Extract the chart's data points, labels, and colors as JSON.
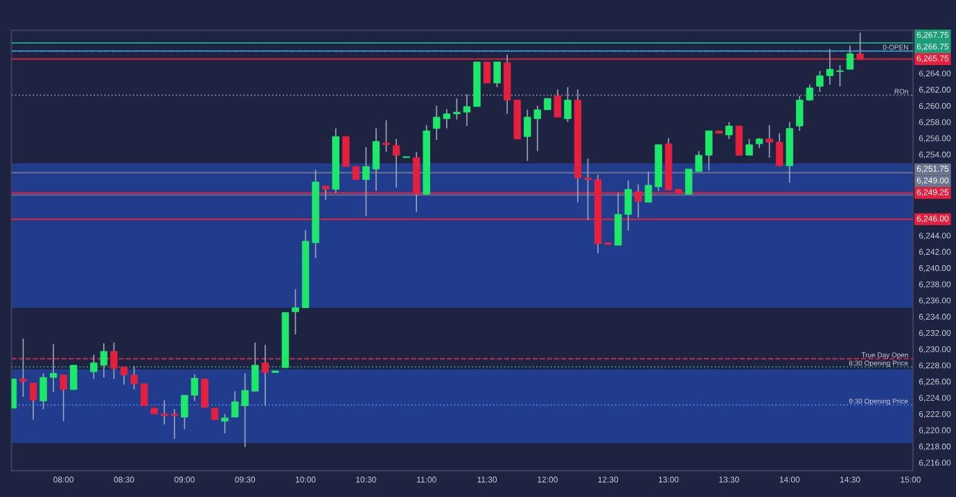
{
  "chart_data": {
    "type": "candlestick",
    "x": [
      7.5833,
      7.6667,
      7.75,
      7.8333,
      7.9167,
      8.0,
      8.0833,
      8.25,
      8.3333,
      8.4167,
      8.5,
      8.5833,
      8.6667,
      8.75,
      8.8333,
      8.9167,
      9.0,
      9.0833,
      9.1667,
      9.25,
      9.3333,
      9.4167,
      9.5,
      9.5833,
      9.6667,
      9.75,
      9.8333,
      9.9167,
      10.0,
      10.0833,
      10.1667,
      10.25,
      10.3333,
      10.4167,
      10.5,
      10.5833,
      10.6667,
      10.75,
      10.8333,
      10.9167,
      11.0,
      11.0833,
      11.1667,
      11.25,
      11.3333,
      11.4167,
      11.5,
      11.5833,
      11.6667,
      11.75,
      11.8333,
      11.9167,
      12.0,
      12.0833,
      12.1667,
      12.25,
      12.3333,
      12.4167,
      12.5,
      12.5833,
      12.6667,
      12.75,
      12.8333,
      12.9167,
      13.0,
      13.0833,
      13.1667,
      13.25,
      13.3333,
      13.4167,
      13.5,
      13.5833,
      13.6667,
      13.75,
      13.8333,
      13.9167,
      14.0,
      14.0833,
      14.1667,
      14.25,
      14.3333,
      14.4167,
      14.5,
      14.5833
    ],
    "ohlc": [
      [
        6222.7,
        6226.3,
        6222.7,
        6226.3
      ],
      [
        6226.3,
        6231.3,
        6224.1,
        6226.0
      ],
      [
        6225.8,
        6225.8,
        6221.3,
        6223.7
      ],
      [
        6223.6,
        6227.0,
        6222.6,
        6226.5
      ],
      [
        6226.5,
        6230.6,
        6224.7,
        6227.0
      ],
      [
        6226.8,
        6226.8,
        6221.1,
        6225.0
      ],
      [
        6225.0,
        6228.0,
        6225.0,
        6228.0
      ],
      [
        6227.2,
        6229.3,
        6226.3,
        6228.3
      ],
      [
        6228.0,
        6230.7,
        6226.5,
        6229.7
      ],
      [
        6229.7,
        6230.8,
        6226.3,
        6227.6
      ],
      [
        6227.8,
        6227.8,
        6225.6,
        6226.8
      ],
      [
        6226.8,
        6227.9,
        6225.0,
        6225.7
      ],
      [
        6225.7,
        6225.7,
        6223.0,
        6223.0
      ],
      [
        6222.7,
        6222.7,
        6222.0,
        6222.0
      ],
      [
        6222.0,
        6223.7,
        6220.7,
        6221.8
      ],
      [
        6222.0,
        6222.6,
        6218.9,
        6221.8
      ],
      [
        6221.6,
        6224.3,
        6220.1,
        6224.3
      ],
      [
        6224.3,
        6226.9,
        6223.6,
        6226.4
      ],
      [
        6226.3,
        6226.3,
        6222.8,
        6222.8
      ],
      [
        6222.7,
        6222.7,
        6221.3,
        6221.3
      ],
      [
        6221.1,
        6222.0,
        6219.6,
        6221.5
      ],
      [
        6221.6,
        6224.8,
        6221.6,
        6223.5
      ],
      [
        6223.0,
        6227.0,
        6217.9,
        6224.9
      ],
      [
        6224.8,
        6230.8,
        6224.8,
        6228.0
      ],
      [
        6228.3,
        6230.5,
        6223.0,
        6227.1
      ],
      [
        6227.1,
        6227.3,
        6227.1,
        6227.3
      ],
      [
        6227.7,
        6234.5,
        6227.7,
        6234.5
      ],
      [
        6234.6,
        6237.4,
        6231.8,
        6235.1
      ],
      [
        6235.1,
        6244.7,
        6235.1,
        6243.3
      ],
      [
        6243.1,
        6252.1,
        6241.2,
        6250.6
      ],
      [
        6250.1,
        6250.1,
        6248.4,
        6249.7
      ],
      [
        6249.7,
        6257.2,
        6249.2,
        6256.2
      ],
      [
        6256.2,
        6256.2,
        6252.5,
        6252.5
      ],
      [
        6252.5,
        6252.5,
        6250.9,
        6250.9
      ],
      [
        6250.9,
        6254.9,
        6246.4,
        6252.5
      ],
      [
        6252.2,
        6257.2,
        6249.5,
        6255.6
      ],
      [
        6255.4,
        6258.2,
        6254.3,
        6255.2
      ],
      [
        6255.1,
        6255.9,
        6249.9,
        6253.9
      ],
      [
        6253.6,
        6253.6,
        6253.6,
        6253.6
      ],
      [
        6253.6,
        6254.3,
        6246.9,
        6249.1
      ],
      [
        6249.1,
        6257.6,
        6249.1,
        6256.9
      ],
      [
        6257.2,
        6260.0,
        6255.8,
        6258.6
      ],
      [
        6258.4,
        6259.6,
        6257.2,
        6259.0
      ],
      [
        6259.0,
        6260.9,
        6258.3,
        6259.2
      ],
      [
        6259.2,
        6261.4,
        6257.5,
        6259.9
      ],
      [
        6259.9,
        6265.4,
        6259.9,
        6265.4
      ],
      [
        6265.4,
        6265.4,
        6262.8,
        6262.8
      ],
      [
        6262.8,
        6265.4,
        6262.3,
        6265.4
      ],
      [
        6265.3,
        6266.3,
        6259.0,
        6260.7
      ],
      [
        6260.7,
        6260.7,
        6255.9,
        6255.9
      ],
      [
        6256.2,
        6259.5,
        6253.2,
        6258.6
      ],
      [
        6258.4,
        6260.0,
        6254.4,
        6259.5
      ],
      [
        6259.5,
        6260.9,
        6259.5,
        6260.9
      ],
      [
        6261.2,
        6262.0,
        6258.6,
        6258.6
      ],
      [
        6258.4,
        6262.3,
        6258.0,
        6260.7
      ],
      [
        6260.7,
        6262.0,
        6248.1,
        6251.1
      ],
      [
        6251.1,
        6253.5,
        6245.9,
        6250.9
      ],
      [
        6250.9,
        6251.5,
        6241.8,
        6243.0
      ],
      [
        6243.1,
        6243.1,
        6242.9,
        6242.9
      ],
      [
        6242.8,
        6249.3,
        6242.8,
        6246.6
      ],
      [
        6246.6,
        6250.8,
        6244.6,
        6249.7
      ],
      [
        6249.4,
        6250.3,
        6246.2,
        6248.2
      ],
      [
        6248.1,
        6251.9,
        6248.1,
        6250.2
      ],
      [
        6250.0,
        6255.2,
        6249.5,
        6255.2
      ],
      [
        6255.3,
        6256.0,
        6249.6,
        6249.6
      ],
      [
        6249.7,
        6249.7,
        6249.2,
        6249.2
      ],
      [
        6249.1,
        6252.2,
        6249.1,
        6252.2
      ],
      [
        6251.9,
        6254.4,
        6251.9,
        6253.9
      ],
      [
        6253.9,
        6256.9,
        6252.0,
        6256.9
      ],
      [
        6256.9,
        6256.9,
        6256.6,
        6256.6
      ],
      [
        6256.4,
        6258.0,
        6255.9,
        6257.5
      ],
      [
        6257.5,
        6257.5,
        6253.9,
        6253.9
      ],
      [
        6253.9,
        6255.9,
        6253.9,
        6255.2
      ],
      [
        6255.3,
        6256.0,
        6254.8,
        6255.9
      ],
      [
        6255.9,
        6257.6,
        6253.6,
        6255.5
      ],
      [
        6255.5,
        6256.6,
        6252.5,
        6252.6
      ],
      [
        6252.6,
        6258.0,
        6250.5,
        6257.2
      ],
      [
        6257.5,
        6261.2,
        6256.9,
        6260.7
      ],
      [
        6260.7,
        6262.6,
        6260.6,
        6262.2
      ],
      [
        6262.4,
        6264.3,
        6261.7,
        6263.7
      ],
      [
        6263.7,
        6267.0,
        6262.6,
        6264.5
      ],
      [
        6264.2,
        6265.0,
        6262.4,
        6264.2
      ],
      [
        6264.5,
        6267.4,
        6264.5,
        6266.4
      ],
      [
        6266.4,
        6269.0,
        6265.7,
        6265.7
      ]
    ],
    "colors": [
      "#1ee86a",
      "#e3213f",
      "#e3213f",
      "#1ee86a",
      "#1ee86a",
      "#e3213f",
      "#1ee86a",
      "#1ee86a",
      "#1ee86a",
      "#e3213f",
      "#e3213f",
      "#e3213f",
      "#e3213f",
      "#e3213f",
      "#e3213f",
      "#e3213f",
      "#1ee86a",
      "#1ee86a",
      "#e3213f",
      "#e3213f",
      "#1ee86a",
      "#1ee86a",
      "#1ee86a",
      "#1ee86a",
      "#e3213f",
      "#1ee86a",
      "#1ee86a",
      "#1ee86a",
      "#1ee86a",
      "#1ee86a",
      "#e3213f",
      "#1ee86a",
      "#e3213f",
      "#e3213f",
      "#1ee86a",
      "#1ee86a",
      "#e3213f",
      "#e3213f",
      "#1ee86a",
      "#e3213f",
      "#1ee86a",
      "#1ee86a",
      "#1ee86a",
      "#1ee86a",
      "#1ee86a",
      "#1ee86a",
      "#e3213f",
      "#1ee86a",
      "#e3213f",
      "#e3213f",
      "#1ee86a",
      "#1ee86a",
      "#1ee86a",
      "#e3213f",
      "#1ee86a",
      "#e3213f",
      "#e3213f",
      "#e3213f",
      "#e3213f",
      "#1ee86a",
      "#1ee86a",
      "#e3213f",
      "#1ee86a",
      "#1ee86a",
      "#e3213f",
      "#e3213f",
      "#1ee86a",
      "#1ee86a",
      "#1ee86a",
      "#e3213f",
      "#1ee86a",
      "#e3213f",
      "#1ee86a",
      "#1ee86a",
      "#e3213f",
      "#e3213f",
      "#1ee86a",
      "#1ee86a",
      "#1ee86a",
      "#1ee86a",
      "#1ee86a",
      "#1ee86a",
      "#1ee86a",
      "#e3213f"
    ],
    "xlim": [
      7.57,
      15.02
    ],
    "xticks": [
      {
        "value": 8,
        "label": "08:00"
      },
      {
        "value": 8.5,
        "label": "08:30"
      },
      {
        "value": 9,
        "label": "09:00"
      },
      {
        "value": 9.5,
        "label": "09:30"
      },
      {
        "value": 10,
        "label": "10:00"
      },
      {
        "value": 10.5,
        "label": "10:30"
      },
      {
        "value": 11,
        "label": "11:00"
      },
      {
        "value": 11.5,
        "label": "11:30"
      },
      {
        "value": 12,
        "label": "12:00"
      },
      {
        "value": 12.5,
        "label": "12:30"
      },
      {
        "value": 13,
        "label": "13:00"
      },
      {
        "value": 13.5,
        "label": "13:30"
      },
      {
        "value": 14,
        "label": "14:00"
      },
      {
        "value": 14.5,
        "label": "14:30"
      },
      {
        "value": 15,
        "label": "15:00"
      }
    ],
    "ylim": [
      6215.0,
      6269.3
    ],
    "yticks": [
      {
        "value": 6216,
        "label": "6,216.00"
      },
      {
        "value": 6218,
        "label": "6,218.00"
      },
      {
        "value": 6220,
        "label": "6,220.00"
      },
      {
        "value": 6222,
        "label": "6,222.00"
      },
      {
        "value": 6224,
        "label": "6,224.00"
      },
      {
        "value": 6226,
        "label": "6,226.00"
      },
      {
        "value": 6228,
        "label": "6,228.00"
      },
      {
        "value": 6230,
        "label": "6,230.00"
      },
      {
        "value": 6232,
        "label": "6,232.00"
      },
      {
        "value": 6234,
        "label": "6,234.00"
      },
      {
        "value": 6236,
        "label": "6,236.00"
      },
      {
        "value": 6238,
        "label": "6,238.00"
      },
      {
        "value": 6240,
        "label": "6,240.00"
      },
      {
        "value": 6242,
        "label": "6,242.00"
      },
      {
        "value": 6244,
        "label": "6,244.00"
      },
      {
        "value": 6254,
        "label": "6,254.00"
      },
      {
        "value": 6256,
        "label": "6,256.00"
      },
      {
        "value": 6258,
        "label": "6,258.00"
      },
      {
        "value": 6260,
        "label": "6,260.00"
      },
      {
        "value": 6262,
        "label": "6,262.00"
      },
      {
        "value": 6264,
        "label": "6,264.00"
      }
    ],
    "bands": [
      {
        "axis": "y",
        "from": 6235.1,
        "to": 6252.9,
        "color": "#22409a"
      },
      {
        "axis": "y",
        "from": 6218.4,
        "to": 6227.5,
        "color": "#22409a"
      }
    ],
    "ref_lines": [
      {
        "axis": "y",
        "line_style": "solid",
        "value": 6267.75,
        "label": "6,267.75",
        "color": "#1f9e7a"
      },
      {
        "axis": "y",
        "line_style": "solid",
        "value": 6266.75,
        "label": "6,266.75",
        "color": "#1f9e7a"
      },
      {
        "axis": "y",
        "line_style": "solid",
        "value": 6265.75,
        "label": "6,265.75",
        "color": "#e3213f"
      },
      {
        "axis": "y",
        "line_style": "solid",
        "value": 6251.75,
        "label": "6,251.75",
        "color": "#6c7590"
      },
      {
        "axis": "y",
        "line_style": "solid",
        "value": 6249.25,
        "label": "6,249.25",
        "color": "#e3213f"
      },
      {
        "axis": "y",
        "line_style": "solid",
        "value": 6249.0,
        "label": "6,249.00",
        "color": "#6c7590"
      },
      {
        "axis": "y",
        "line_style": "solid",
        "value": 6246.0,
        "label": "6,246.00",
        "color": "#e3213f"
      },
      {
        "axis": "y",
        "value": 6266.75,
        "label": "0-OPEN",
        "color": "#4a7ad6",
        "line_style": "dashed"
      },
      {
        "axis": "y",
        "value": 6261.3,
        "label": "ROn",
        "color": "#7a7f96",
        "line_style": "dotted"
      },
      {
        "axis": "y",
        "value": 6228.8,
        "label": "True Day Open",
        "color": "#c0304a",
        "line_style": "dashed"
      },
      {
        "axis": "y",
        "value": 6227.8,
        "color": "#2f8f6a",
        "line_style": "dotted"
      },
      {
        "axis": "y",
        "value": 6223.1,
        "color": "#4a7ad6",
        "line_style": "dotted"
      }
    ],
    "annotations": [
      {
        "text": "8:30 Opening Price",
        "x": 14.98,
        "y": 6227.8
      },
      {
        "text": "9:30 Opening Price",
        "x": 14.98,
        "y": 6223.1
      }
    ]
  }
}
